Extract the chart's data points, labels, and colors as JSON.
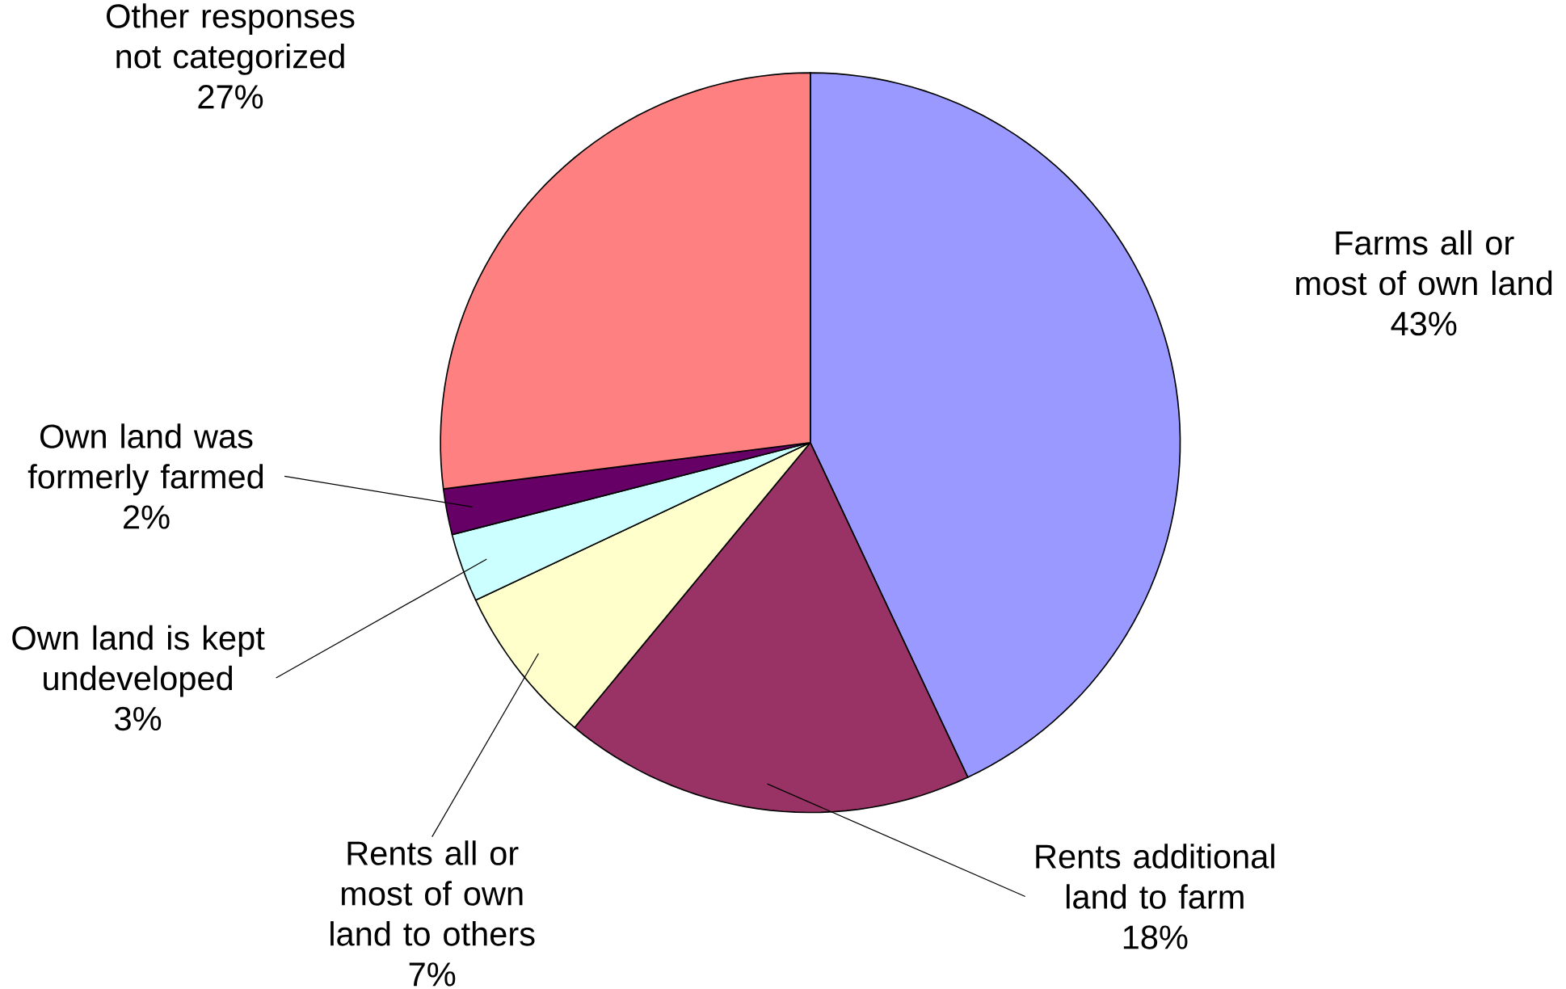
{
  "chart_data": {
    "type": "pie",
    "categories": [
      "Farms all or most of own land",
      "Rents additional land to farm",
      "Rents all or most of own land to others",
      "Own land is kept undeveloped",
      "Own land was formerly farmed",
      "Other responses not categorized"
    ],
    "values": [
      43,
      18,
      7,
      3,
      2,
      27
    ],
    "colors": [
      "#9999ff",
      "#993366",
      "#ffffcc",
      "#ccffff",
      "#660066",
      "#ff8080"
    ],
    "value_labels": [
      "43%",
      "18%",
      "7%",
      "3%",
      "2%",
      "27%"
    ]
  }
}
